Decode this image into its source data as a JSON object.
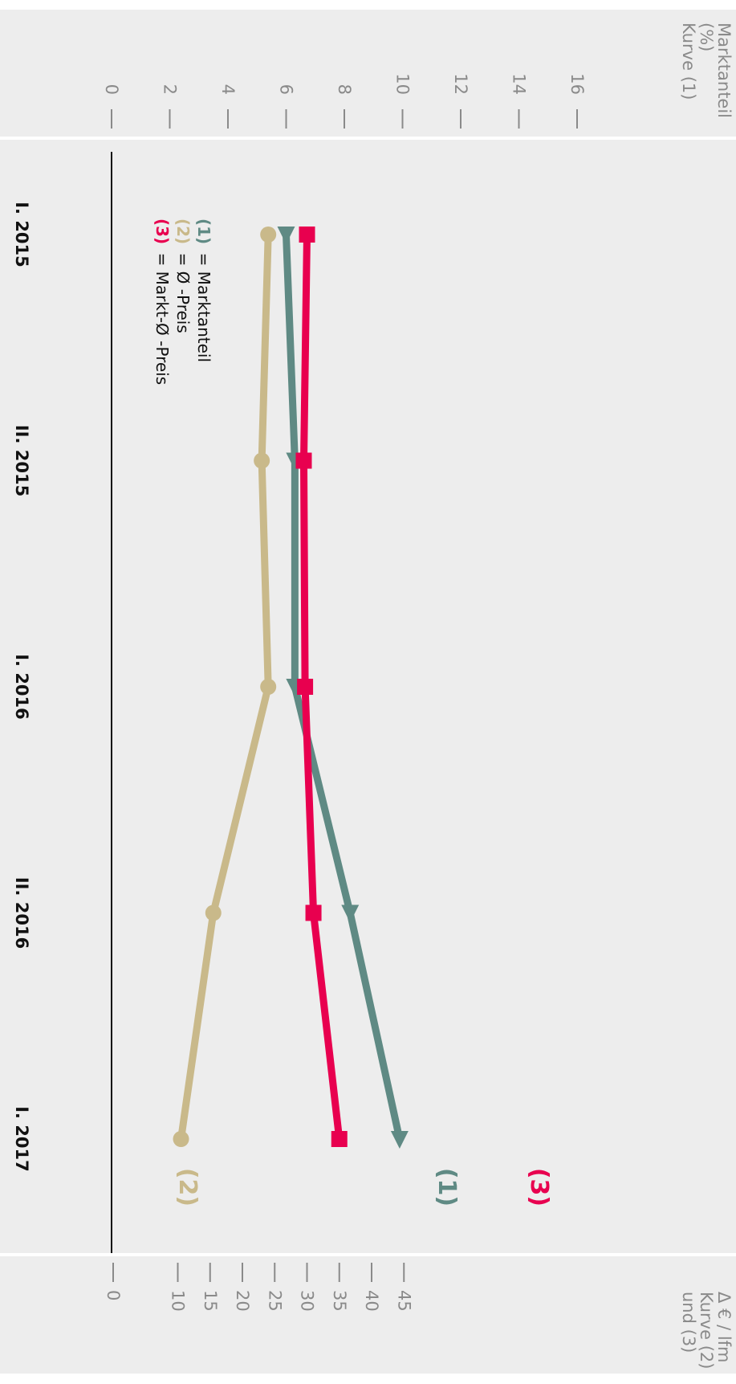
{
  "chart_data": {
    "type": "line",
    "orientation": "rotated-90-clockwise",
    "categories": [
      "I. 2015",
      "II. 2015",
      "I. 2016",
      "II. 2016",
      "I. 2017"
    ],
    "left_axis": {
      "title_lines": [
        "Marktanteil",
        "(%)",
        "Kurve (1)"
      ],
      "range": [
        0,
        16
      ],
      "ticks": [
        0,
        2,
        4,
        6,
        8,
        10,
        12,
        14,
        16
      ]
    },
    "right_axis": {
      "title_lines": [
        "Δ € / lfm",
        "Kurve (2)",
        "und  (3)"
      ],
      "range": [
        0,
        45
      ],
      "ticks": [
        0,
        10,
        15,
        20,
        25,
        30,
        35,
        40,
        45
      ]
    },
    "series": [
      {
        "key": "(1)",
        "axis": "left",
        "marker": "triangle",
        "color": "#5f8a84",
        "values": [
          6.0,
          6.3,
          6.3,
          8.2,
          9.9
        ]
      },
      {
        "key": "(2)",
        "axis": "right",
        "marker": "circle",
        "color": "#c9b98a",
        "values": [
          24.0,
          23.0,
          24.0,
          15.5,
          10.5
        ]
      },
      {
        "key": "(3)",
        "axis": "right",
        "marker": "square",
        "color": "#e8004f",
        "values": [
          30.0,
          29.5,
          29.7,
          31.0,
          35.0
        ]
      }
    ],
    "legend": [
      {
        "key": "(1)",
        "label": "= Marktanteil"
      },
      {
        "key": "(2)",
        "label": "= Ø -Preis"
      },
      {
        "key": "(3)",
        "label": "= Markt-Ø -Preis"
      }
    ],
    "end_labels": [
      "(1)",
      "(2)",
      "(3)"
    ],
    "background": "#ededed",
    "grid": false
  }
}
